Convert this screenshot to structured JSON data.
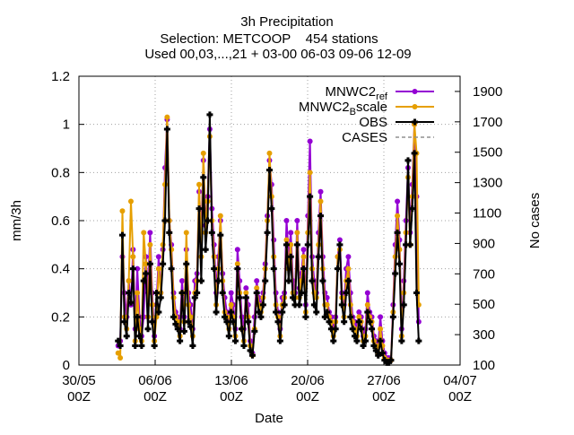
{
  "chart_data": {
    "type": "line",
    "title": "3h Precipitation",
    "subtitle": "Selection: METCOOP    454 stations",
    "subtitle2": "Used 00,03,...,21 + 03-00 06-03 09-06 12-09",
    "xlabel": "Date",
    "ylabel": "mm/3h",
    "y2label": "No cases",
    "xlim": [
      0,
      35
    ],
    "ylim": [
      0,
      1.2
    ],
    "y2lim": [
      100,
      2000
    ],
    "x_ticks": [
      {
        "x": 0,
        "line1": "30/05",
        "line2": "00Z"
      },
      {
        "x": 7,
        "line1": "06/06",
        "line2": "00Z"
      },
      {
        "x": 14,
        "line1": "13/06",
        "line2": "00Z"
      },
      {
        "x": 21,
        "line1": "20/06",
        "line2": "00Z"
      },
      {
        "x": 28,
        "line1": "27/06",
        "line2": "00Z"
      },
      {
        "x": 35,
        "line1": "04/07",
        "line2": "00Z"
      }
    ],
    "y_ticks": [
      "0",
      "0.2",
      "0.4",
      "0.6",
      "0.8",
      "1",
      "1.2"
    ],
    "y2_ticks": [
      "100",
      "300",
      "500",
      "700",
      "900",
      "1100",
      "1300",
      "1500",
      "1700",
      "1900"
    ],
    "grid": true,
    "legend_position": "top-right",
    "series": [
      {
        "name": "MNWC2_ref",
        "name_main": "MNWC2",
        "name_sub": "ref",
        "color": "#9400d3",
        "axis": "y",
        "marker": "circle",
        "values": [
          0.08,
          0.1,
          0.45,
          0.3,
          0.2,
          0.35,
          0.25,
          0.48,
          0.15,
          0.4,
          0.2,
          0.12,
          0.2,
          0.45,
          0.3,
          0.55,
          0.3,
          0.12,
          0.25,
          0.45,
          0.3,
          0.48,
          0.82,
          1.02,
          0.6,
          0.5,
          0.3,
          0.22,
          0.2,
          0.15,
          0.35,
          0.2,
          0.48,
          0.3,
          0.25,
          0.15,
          0.35,
          0.38,
          0.72,
          0.55,
          0.85,
          0.58,
          0.7,
          0.98,
          0.65,
          0.5,
          0.3,
          0.45,
          0.6,
          0.38,
          0.28,
          0.22,
          0.18,
          0.3,
          0.25,
          0.15,
          0.48,
          0.35,
          0.2,
          0.15,
          0.32,
          0.25,
          0.1,
          0.05,
          0.2,
          0.35,
          0.28,
          0.25,
          0.3,
          0.42,
          0.62,
          0.85,
          0.75,
          0.52,
          0.3,
          0.22,
          0.15,
          0.28,
          0.3,
          0.6,
          0.45,
          0.55,
          0.35,
          0.3,
          0.6,
          0.32,
          0.38,
          0.48,
          0.25,
          0.62,
          0.93,
          0.45,
          0.35,
          0.3,
          0.55,
          0.72,
          0.45,
          0.3,
          0.28,
          0.22,
          0.2,
          0.15,
          0.2,
          0.45,
          0.52,
          0.3,
          0.25,
          0.4,
          0.45,
          0.3,
          0.2,
          0.18,
          0.15,
          0.22,
          0.2,
          0.12,
          0.15,
          0.3,
          0.22,
          0.2,
          0.12,
          0.1,
          0.08,
          0.2,
          0.1,
          0.05,
          0.03,
          0.03,
          0.02,
          0.25,
          0.5,
          0.68,
          0.52,
          0.15,
          0.35,
          0.6,
          0.82,
          0.55,
          0.75,
          1.0,
          0.7,
          0.18
        ]
      },
      {
        "name": "MNWC2_Bscale",
        "name_main": "MNWC2",
        "name_sub": "B",
        "name_tail": "scale",
        "color": "#e69f00",
        "axis": "y",
        "marker": "circle",
        "values": [
          0.05,
          0.03,
          0.64,
          0.2,
          0.15,
          0.35,
          0.68,
          0.45,
          0.1,
          0.3,
          0.15,
          0.1,
          0.55,
          0.42,
          0.2,
          0.5,
          0.25,
          0.1,
          0.2,
          0.4,
          0.3,
          0.5,
          0.75,
          1.03,
          0.6,
          0.48,
          0.28,
          0.2,
          0.18,
          0.12,
          0.3,
          0.18,
          0.55,
          0.25,
          0.2,
          0.12,
          0.3,
          0.35,
          0.75,
          0.45,
          0.88,
          0.55,
          0.68,
          0.95,
          0.6,
          0.45,
          0.25,
          0.4,
          0.62,
          0.35,
          0.22,
          0.2,
          0.15,
          0.25,
          0.2,
          0.12,
          0.42,
          0.3,
          0.15,
          0.1,
          0.3,
          0.2,
          0.08,
          0.04,
          0.15,
          0.32,
          0.25,
          0.22,
          0.28,
          0.4,
          0.6,
          0.88,
          0.7,
          0.45,
          0.25,
          0.2,
          0.12,
          0.25,
          0.28,
          0.52,
          0.4,
          0.5,
          0.3,
          0.28,
          0.55,
          0.28,
          0.35,
          0.45,
          0.22,
          0.55,
          0.8,
          0.4,
          0.3,
          0.28,
          0.5,
          0.68,
          0.4,
          0.25,
          0.25,
          0.2,
          0.18,
          0.12,
          0.18,
          0.45,
          0.48,
          0.28,
          0.2,
          0.35,
          0.4,
          0.25,
          0.18,
          0.15,
          0.12,
          0.2,
          0.18,
          0.1,
          0.12,
          0.25,
          0.2,
          0.18,
          0.1,
          0.08,
          0.05,
          0.15,
          0.08,
          0.03,
          0.02,
          0.02,
          0.02,
          0.22,
          0.45,
          0.62,
          0.48,
          0.12,
          0.3,
          0.55,
          0.78,
          0.5,
          0.7,
          1.0,
          0.88,
          0.25
        ]
      },
      {
        "name": "OBS",
        "color": "#000000",
        "axis": "y",
        "marker": "plus",
        "values": [
          0.1,
          0.08,
          0.54,
          0.18,
          0.12,
          0.3,
          0.26,
          0.4,
          0.08,
          0.2,
          0.12,
          0.08,
          0.35,
          0.38,
          0.15,
          0.42,
          0.18,
          0.08,
          0.3,
          0.22,
          0.28,
          0.42,
          0.6,
          0.98,
          0.55,
          0.4,
          0.2,
          0.17,
          0.15,
          0.1,
          0.3,
          0.14,
          0.42,
          0.18,
          0.16,
          0.08,
          0.28,
          0.3,
          0.65,
          0.35,
          0.78,
          0.48,
          0.6,
          1.04,
          0.55,
          0.4,
          0.22,
          0.35,
          0.54,
          0.3,
          0.2,
          0.18,
          0.12,
          0.22,
          0.18,
          0.1,
          0.4,
          0.28,
          0.15,
          0.08,
          0.28,
          0.18,
          0.06,
          0.04,
          0.14,
          0.3,
          0.22,
          0.2,
          0.25,
          0.35,
          0.55,
          0.81,
          0.65,
          0.4,
          0.22,
          0.18,
          0.1,
          0.22,
          0.25,
          0.5,
          0.35,
          0.45,
          0.28,
          0.25,
          0.5,
          0.25,
          0.3,
          0.4,
          0.2,
          0.5,
          0.7,
          0.35,
          0.25,
          0.22,
          0.45,
          0.62,
          0.35,
          0.2,
          0.22,
          0.18,
          0.15,
          0.1,
          0.15,
          0.4,
          0.5,
          0.25,
          0.18,
          0.3,
          0.35,
          0.2,
          0.15,
          0.12,
          0.1,
          0.18,
          0.15,
          0.08,
          0.1,
          0.22,
          0.18,
          0.15,
          0.08,
          0.06,
          0.04,
          0.1,
          0.05,
          0.02,
          0.01,
          0.01,
          0.02,
          0.2,
          0.38,
          0.55,
          0.42,
          0.1,
          0.25,
          0.5,
          0.85,
          0.5,
          0.65,
          0.88,
          0.3,
          0.1
        ]
      },
      {
        "name": "CASES",
        "color": "#909090",
        "axis": "y2",
        "marker": "none",
        "values": [
          null,
          null,
          null,
          null,
          null,
          null,
          null,
          null,
          null,
          null,
          null,
          null,
          null,
          null,
          null,
          null,
          null,
          null,
          null,
          null,
          null,
          null,
          null,
          null,
          null,
          null,
          null,
          null,
          null,
          null,
          null,
          null,
          null,
          null,
          null,
          null,
          null,
          null,
          null,
          null,
          null,
          null,
          null,
          null,
          null,
          null,
          null,
          null,
          null,
          null,
          null,
          null,
          null,
          null,
          null,
          null,
          null,
          null,
          null,
          null,
          null,
          null,
          null,
          null,
          null,
          null,
          null,
          null,
          null,
          null,
          null,
          null,
          null,
          null,
          null,
          null,
          null,
          null,
          null,
          null,
          null,
          null,
          null,
          null,
          null,
          null,
          null,
          null,
          null,
          null,
          null,
          null,
          null,
          null,
          null,
          null,
          null,
          null,
          null,
          null,
          null,
          null,
          null,
          null,
          null,
          null,
          null,
          null,
          null,
          null,
          null,
          null,
          null,
          null,
          null,
          null,
          null,
          null,
          null,
          null,
          null,
          null,
          null,
          null,
          null,
          null,
          null,
          null,
          null,
          null,
          null,
          null,
          null,
          null,
          null,
          null,
          null,
          null,
          null,
          null,
          null,
          null
        ]
      }
    ]
  }
}
